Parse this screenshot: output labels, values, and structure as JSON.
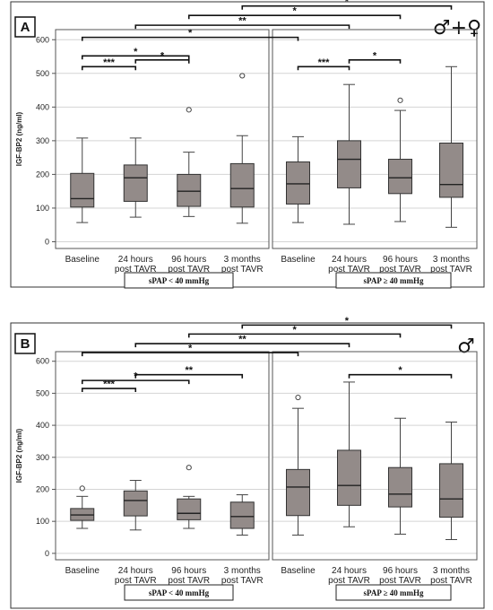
{
  "chart_data": [
    {
      "type": "boxplot",
      "panel_label": "A",
      "sex_symbol": "♂+♀",
      "ylabel": "IGF-BP2 (ng/ml)",
      "ylim": [
        -20,
        630
      ],
      "yticks": [
        0,
        100,
        200,
        300,
        400,
        500,
        600
      ],
      "categories": [
        "Baseline",
        "24 hours post TAVR",
        "96 hours post TAVR",
        "3 months post TAVR"
      ],
      "groups": [
        {
          "label": "sPAP < 40 mmHg",
          "boxes": [
            {
              "min": 57,
              "q1": 103,
              "median": 128,
              "q3": 203,
              "max": 308,
              "outliers": []
            },
            {
              "min": 73,
              "q1": 120,
              "median": 190,
              "q3": 228,
              "max": 308,
              "outliers": []
            },
            {
              "min": 75,
              "q1": 105,
              "median": 150,
              "q3": 200,
              "max": 266,
              "outliers": [
                392
              ]
            },
            {
              "min": 55,
              "q1": 103,
              "median": 158,
              "q3": 232,
              "max": 315,
              "outliers": [
                493
              ]
            }
          ]
        },
        {
          "label": "sPAP ≥ 40 mmHg",
          "boxes": [
            {
              "min": 57,
              "q1": 112,
              "median": 172,
              "q3": 237,
              "max": 312,
              "outliers": []
            },
            {
              "min": 52,
              "q1": 160,
              "median": 245,
              "q3": 300,
              "max": 467,
              "outliers": []
            },
            {
              "min": 60,
              "q1": 143,
              "median": 190,
              "q3": 245,
              "max": 390,
              "outliers": [
                420
              ]
            },
            {
              "min": 43,
              "q1": 132,
              "median": 170,
              "q3": 293,
              "max": 520,
              "outliers": []
            }
          ]
        }
      ],
      "annotations": [
        {
          "group": 0,
          "from": 0,
          "to": 1,
          "y": 520,
          "label": "***"
        },
        {
          "group": 0,
          "from": 1,
          "to": 2,
          "y": 540,
          "label": "*"
        },
        {
          "group": 0,
          "from": 0,
          "to": 2,
          "y": 552,
          "label": "*"
        },
        {
          "group": 1,
          "from": 0,
          "to": 1,
          "y": 520,
          "label": "***"
        },
        {
          "group": 1,
          "from": 1,
          "to": 2,
          "y": 540,
          "label": "*"
        },
        {
          "cross": true,
          "from": [
            0,
            0
          ],
          "to": [
            1,
            0
          ],
          "y": 607,
          "label": "*"
        },
        {
          "cross": true,
          "from": [
            0,
            1
          ],
          "to": [
            1,
            1
          ],
          "y": 643,
          "label": "**"
        },
        {
          "cross": true,
          "from": [
            0,
            2
          ],
          "to": [
            1,
            2
          ],
          "y": 672,
          "label": "*"
        },
        {
          "cross": true,
          "from": [
            0,
            3
          ],
          "to": [
            1,
            3
          ],
          "y": 700,
          "label": "*"
        }
      ]
    },
    {
      "type": "boxplot",
      "panel_label": "B",
      "sex_symbol": "♂",
      "ylabel": "IGF-BP2 (ng/ml)",
      "ylim": [
        -20,
        630
      ],
      "yticks": [
        0,
        100,
        200,
        300,
        400,
        500,
        600
      ],
      "categories": [
        "Baseline",
        "24 hours post TAVR",
        "96 hours post TAVR",
        "3 months post TAVR"
      ],
      "groups": [
        {
          "label": "sPAP < 40 mmHg",
          "boxes": [
            {
              "min": 78,
              "q1": 103,
              "median": 120,
              "q3": 140,
              "max": 178,
              "outliers": [
                203
              ]
            },
            {
              "min": 73,
              "q1": 117,
              "median": 165,
              "q3": 195,
              "max": 228,
              "outliers": []
            },
            {
              "min": 78,
              "q1": 105,
              "median": 125,
              "q3": 170,
              "max": 178,
              "outliers": [
                268
              ]
            },
            {
              "min": 57,
              "q1": 78,
              "median": 115,
              "q3": 160,
              "max": 183,
              "outliers": []
            }
          ]
        },
        {
          "label": "sPAP ≥ 40 mmHg",
          "boxes": [
            {
              "min": 57,
              "q1": 118,
              "median": 207,
              "q3": 262,
              "max": 453,
              "outliers": [
                487
              ]
            },
            {
              "min": 83,
              "q1": 150,
              "median": 212,
              "q3": 322,
              "max": 535,
              "outliers": []
            },
            {
              "min": 60,
              "q1": 145,
              "median": 185,
              "q3": 268,
              "max": 422,
              "outliers": []
            },
            {
              "min": 43,
              "q1": 113,
              "median": 170,
              "q3": 280,
              "max": 410,
              "outliers": []
            }
          ]
        }
      ],
      "annotations": [
        {
          "group": 0,
          "from": 0,
          "to": 1,
          "y": 515,
          "label": "***"
        },
        {
          "group": 0,
          "from": 0,
          "to": 2,
          "y": 540,
          "label": "*"
        },
        {
          "group": 0,
          "from": 1,
          "to": 3,
          "y": 558,
          "label": "**"
        },
        {
          "group": 1,
          "from": 1,
          "to": 3,
          "y": 558,
          "label": "*"
        },
        {
          "cross": true,
          "from": [
            0,
            0
          ],
          "to": [
            1,
            0
          ],
          "y": 627,
          "label": "*"
        },
        {
          "cross": true,
          "from": [
            0,
            1
          ],
          "to": [
            1,
            1
          ],
          "y": 655,
          "label": "**"
        },
        {
          "cross": true,
          "from": [
            0,
            2
          ],
          "to": [
            1,
            2
          ],
          "y": 685,
          "label": "*"
        },
        {
          "cross": true,
          "from": [
            0,
            3
          ],
          "to": [
            1,
            3
          ],
          "y": 713,
          "label": "*"
        }
      ]
    }
  ]
}
